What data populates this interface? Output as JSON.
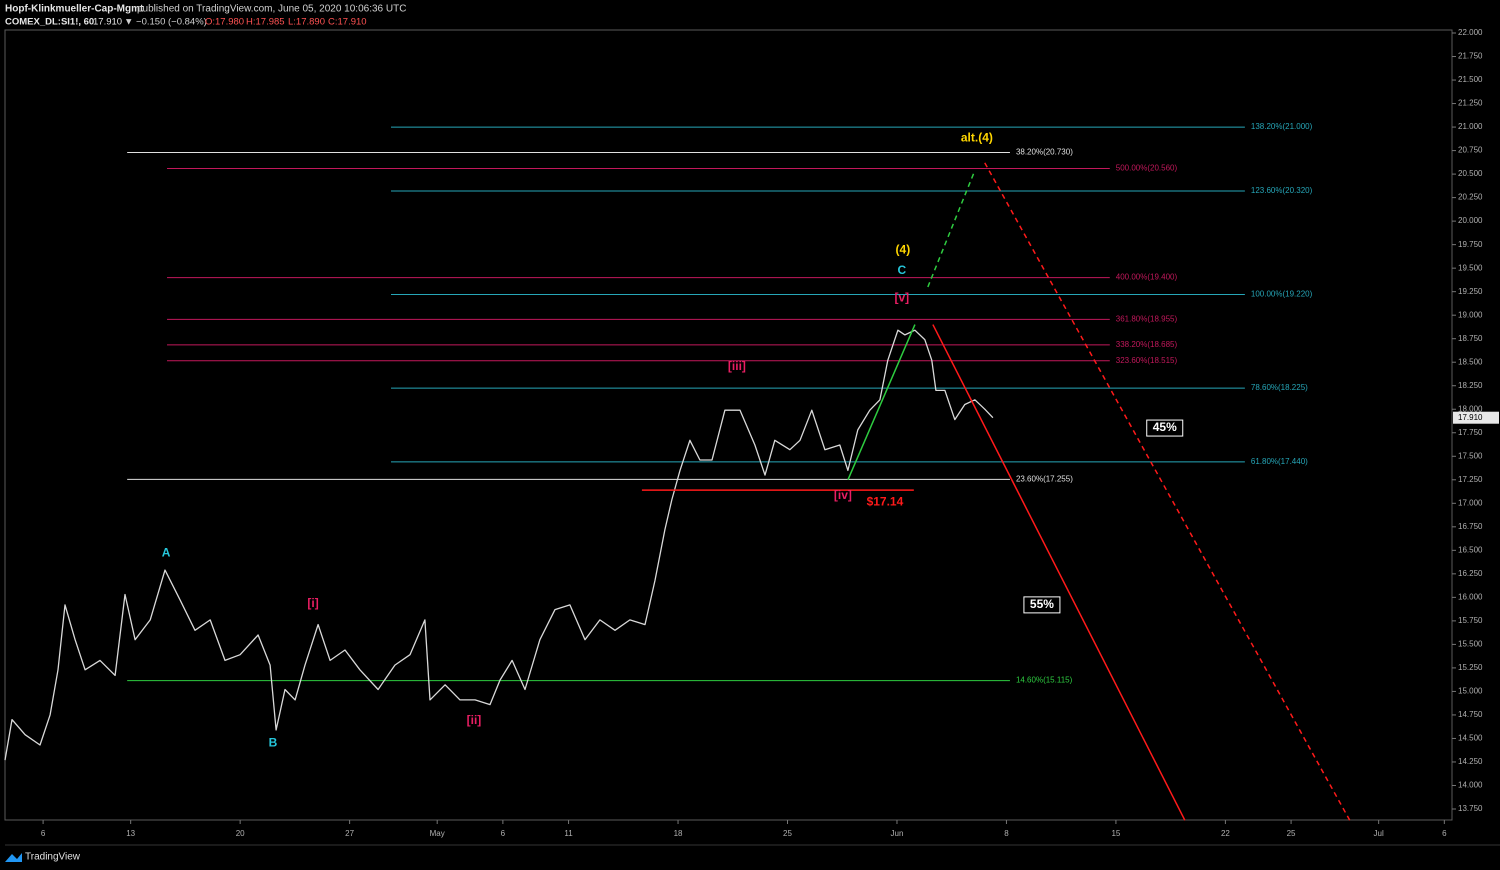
{
  "header": {
    "author": "Hopf-Klinkmueller-Cap-Mgmt",
    "published": "published on TradingView.com, June 05, 2020 10:06:36 UTC",
    "symbol": "COMEX_DL:SI1!, 60",
    "last": "17.910",
    "change": "▼ −0.150 (−0.84%)",
    "open": "O:17.980",
    "high": "H:17.985",
    "low": "L:17.890",
    "close": "C:17.910"
  },
  "footer": {
    "brand": "TradingView"
  },
  "chart_data": {
    "type": "line",
    "x": [
      -1.74,
      -1.42,
      -0.82,
      -0.14,
      0.32,
      0.68,
      1.0,
      1.46,
      1.92,
      2.6,
      3.29,
      3.74,
      4.2,
      4.89,
      5.57,
      6.26,
      6.94,
      7.63,
      8.31,
      9.0,
      9.82,
      10.37,
      10.64,
      11.05,
      11.51,
      11.96,
      12.56,
      13.11,
      13.79,
      14.47,
      15.3,
      16.07,
      16.76,
      17.44,
      17.67,
      18.36,
      19.04,
      19.73,
      20.41,
      20.87,
      21.42,
      22.01,
      22.69,
      23.38,
      24.06,
      24.75,
      25.43,
      26.12,
      26.8,
      27.49,
      27.95,
      28.4,
      28.72,
      29.09,
      29.54,
      30.0,
      30.55,
      31.14,
      31.83,
      32.51,
      32.97,
      33.42,
      34.11,
      34.57,
      35.11,
      35.71,
      36.39,
      36.76,
      37.21,
      37.76,
      38.22,
      38.58,
      39.04,
      39.36,
      39.82,
      40.27,
      40.59,
      40.78,
      41.19,
      41.64,
      42.1,
      42.56,
      43.01,
      43.38
    ],
    "series": [
      {
        "name": "COMEX_DL:SI1!",
        "color": "#d9d9d9",
        "values": [
          14.27,
          14.7,
          14.54,
          14.43,
          14.75,
          15.23,
          15.92,
          15.55,
          15.23,
          15.33,
          15.17,
          16.03,
          15.55,
          15.76,
          16.29,
          15.97,
          15.65,
          15.76,
          15.33,
          15.39,
          15.6,
          15.28,
          14.59,
          15.02,
          14.91,
          15.28,
          15.71,
          15.33,
          15.44,
          15.23,
          15.02,
          15.28,
          15.39,
          15.76,
          14.91,
          15.07,
          14.91,
          14.91,
          14.86,
          15.12,
          15.33,
          15.02,
          15.55,
          15.87,
          15.92,
          15.55,
          15.76,
          15.65,
          15.76,
          15.71,
          16.18,
          16.72,
          17.04,
          17.35,
          17.67,
          17.46,
          17.46,
          17.99,
          17.99,
          17.62,
          17.3,
          17.67,
          17.57,
          17.67,
          17.99,
          17.57,
          17.62,
          17.35,
          17.78,
          17.99,
          18.1,
          18.52,
          18.84,
          18.79,
          18.84,
          18.74,
          18.52,
          18.2,
          18.2,
          17.89,
          18.05,
          18.1,
          18.0,
          17.91
        ]
      }
    ],
    "xlim": [
      -1.74,
      64.35
    ],
    "xticks": [
      {
        "value": 0,
        "label": "6"
      },
      {
        "value": 4,
        "label": "13"
      },
      {
        "value": 9,
        "label": "20"
      },
      {
        "value": 14,
        "label": "27"
      },
      {
        "value": 18,
        "label": "May"
      },
      {
        "value": 21,
        "label": "6"
      },
      {
        "value": 24,
        "label": "11"
      },
      {
        "value": 29,
        "label": "18"
      },
      {
        "value": 34,
        "label": "25"
      },
      {
        "value": 39,
        "label": "Jun"
      },
      {
        "value": 44,
        "label": "8"
      },
      {
        "value": 49,
        "label": "15"
      },
      {
        "value": 54,
        "label": "22"
      },
      {
        "value": 57,
        "label": "25"
      },
      {
        "value": 61,
        "label": "Jul"
      },
      {
        "value": 64,
        "label": "6"
      }
    ],
    "ylim": [
      13.633,
      22.032
    ],
    "yticks": [
      {
        "value": 13.75,
        "label": "13.750"
      },
      {
        "value": 14,
        "label": "14.000"
      },
      {
        "value": 14.25,
        "label": "14.250"
      },
      {
        "value": 14.5,
        "label": "14.500"
      },
      {
        "value": 14.75,
        "label": "14.750"
      },
      {
        "value": 15,
        "label": "15.000"
      },
      {
        "value": 15.25,
        "label": "15.250"
      },
      {
        "value": 15.5,
        "label": "15.500"
      },
      {
        "value": 15.75,
        "label": "15.750"
      },
      {
        "value": 16,
        "label": "16.000"
      },
      {
        "value": 16.25,
        "label": "16.250"
      },
      {
        "value": 16.5,
        "label": "16.500"
      },
      {
        "value": 16.75,
        "label": "16.750"
      },
      {
        "value": 17,
        "label": "17.000"
      },
      {
        "value": 17.25,
        "label": "17.250"
      },
      {
        "value": 17.5,
        "label": "17.500"
      },
      {
        "value": 17.75,
        "label": "17.750"
      },
      {
        "value": 18,
        "label": "18.000"
      },
      {
        "value": 18.25,
        "label": "18.250"
      },
      {
        "value": 18.5,
        "label": "18.500"
      },
      {
        "value": 18.75,
        "label": "18.750"
      },
      {
        "value": 19,
        "label": "19.000"
      },
      {
        "value": 19.25,
        "label": "19.250"
      },
      {
        "value": 19.5,
        "label": "19.500"
      },
      {
        "value": 19.75,
        "label": "19.750"
      },
      {
        "value": 20,
        "label": "20.000"
      },
      {
        "value": 20.25,
        "label": "20.250"
      },
      {
        "value": 20.5,
        "label": "20.500"
      },
      {
        "value": 20.75,
        "label": "20.750"
      },
      {
        "value": 21,
        "label": "21.000"
      },
      {
        "value": 21.25,
        "label": "21.250"
      },
      {
        "value": 21.5,
        "label": "21.500"
      },
      {
        "value": 21.75,
        "label": "21.750"
      },
      {
        "value": 22,
        "label": "22.000"
      }
    ],
    "levels": [
      {
        "label": "138.20%(21.000)",
        "value": 21.0,
        "color": "#26a6b8",
        "x_range": [
          15.89,
          54.89
        ]
      },
      {
        "label": "123.60%(20.320)",
        "value": 20.32,
        "color": "#26a6b8",
        "x_range": [
          15.89,
          54.89
        ]
      },
      {
        "label": "100.00%(19.220)",
        "value": 19.22,
        "color": "#26a6b8",
        "x_range": [
          15.89,
          54.89
        ]
      },
      {
        "label": "78.60%(18.225)",
        "value": 18.225,
        "color": "#26a6b8",
        "x_range": [
          15.89,
          54.89
        ]
      },
      {
        "label": "61.80%(17.440)",
        "value": 17.44,
        "color": "#26a6b8",
        "x_range": [
          15.89,
          54.89
        ]
      },
      {
        "label": "500.00%(20.560)",
        "value": 20.56,
        "color": "#c2185b",
        "x_range": [
          5.66,
          48.72
        ]
      },
      {
        "label": "400.00%(19.400)",
        "value": 19.4,
        "color": "#c2185b",
        "x_range": [
          5.66,
          48.72
        ]
      },
      {
        "label": "361.80%(18.955)",
        "value": 18.955,
        "color": "#c2185b",
        "x_range": [
          5.66,
          48.72
        ]
      },
      {
        "label": "338.20%(18.685)",
        "value": 18.685,
        "color": "#c2185b",
        "x_range": [
          5.66,
          48.72
        ]
      },
      {
        "label": "323.60%(18.515)",
        "value": 18.515,
        "color": "#c2185b",
        "x_range": [
          5.66,
          48.72
        ]
      },
      {
        "label": "38.20%(20.730)",
        "value": 20.73,
        "color": "#e0e0e0",
        "x_range": [
          3.84,
          44.16
        ]
      },
      {
        "label": "23.60%(17.255)",
        "value": 17.255,
        "color": "#e0e0e0",
        "x_range": [
          3.84,
          44.16
        ]
      },
      {
        "label": "14.60%(15.115)",
        "value": 15.115,
        "color": "#2ecc40",
        "x_range": [
          3.84,
          44.16
        ]
      }
    ],
    "lines": [
      {
        "x": [
          36.76,
          39.82
        ],
        "y": [
          17.25,
          18.9
        ],
        "color": "#2ecc40",
        "dashed": false
      },
      {
        "x": [
          40.41,
          42.56
        ],
        "y": [
          19.3,
          20.54
        ],
        "color": "#2ecc40",
        "dashed": true
      },
      {
        "x": [
          40.64,
          52.15
        ],
        "y": [
          18.9,
          13.63
        ],
        "color": "#ff1a1a",
        "dashed": false
      },
      {
        "x": [
          43.01,
          59.68
        ],
        "y": [
          20.62,
          13.63
        ],
        "color": "#ff1a1a",
        "dashed": true
      },
      {
        "x": [
          27.35,
          39.77
        ],
        "y": [
          17.14,
          17.14
        ],
        "color": "#ff1a1a",
        "dashed": false
      }
    ],
    "annotations": [
      {
        "text": "A",
        "x": 5.62,
        "y": 16.47,
        "color": "#26c6da",
        "boxed": false
      },
      {
        "text": "B",
        "x": 10.5,
        "y": 14.45,
        "color": "#26c6da",
        "boxed": false
      },
      {
        "text": "[i]",
        "x": 12.33,
        "y": 15.93,
        "color": "#e91e63",
        "boxed": false
      },
      {
        "text": "[ii]",
        "x": 19.68,
        "y": 14.69,
        "color": "#e91e63",
        "boxed": false
      },
      {
        "text": "[iii]",
        "x": 31.69,
        "y": 18.45,
        "color": "#e91e63",
        "boxed": false
      },
      {
        "text": "[iv]",
        "x": 36.53,
        "y": 17.08,
        "color": "#e91e63",
        "boxed": false
      },
      {
        "text": "[v]",
        "x": 39.22,
        "y": 19.18,
        "color": "#e91e63",
        "boxed": false
      },
      {
        "text": "C",
        "x": 39.22,
        "y": 19.47,
        "color": "#26c6da",
        "boxed": false
      },
      {
        "text": "(4)",
        "x": 39.27,
        "y": 19.69,
        "color": "#ffd600",
        "boxed": false
      },
      {
        "text": "alt.(4)",
        "x": 42.65,
        "y": 20.88,
        "color": "#ffd600",
        "boxed": false
      },
      {
        "text": "$17.14",
        "x": 38.45,
        "y": 17.01,
        "color": "#ff1a1a",
        "boxed": false
      },
      {
        "text": "45%",
        "x": 51.23,
        "y": 17.8,
        "color": "#ffffff",
        "boxed": true
      },
      {
        "text": "55%",
        "x": 45.62,
        "y": 15.92,
        "color": "#ffffff",
        "boxed": true
      }
    ]
  }
}
